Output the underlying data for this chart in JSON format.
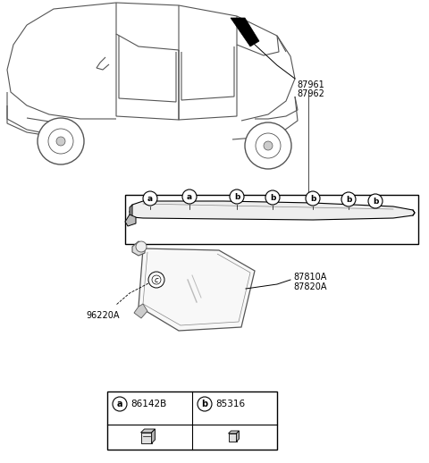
{
  "bg_color": "#ffffff",
  "legend_items": [
    {
      "circle": "a",
      "code": "86142B"
    },
    {
      "circle": "b",
      "code": "85316"
    }
  ],
  "label_87961": "87961",
  "label_87962": "87962",
  "label_87810A": "87810A",
  "label_87820A": "87820A",
  "label_96220A": "96220A"
}
